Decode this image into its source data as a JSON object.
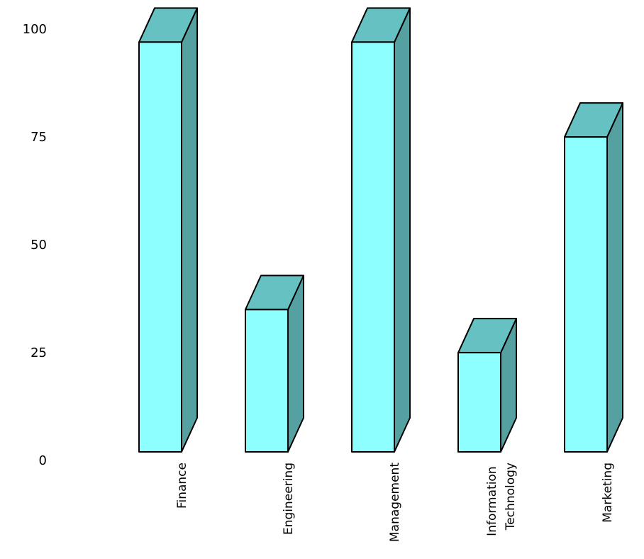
{
  "chart_data": {
    "type": "bar3d",
    "categories": [
      "Finance",
      "Engineering",
      "Management",
      "Information Technology",
      "Marketing"
    ],
    "values": [
      95,
      33,
      95,
      23,
      73
    ],
    "colors": {
      "front": "#8effff",
      "top": "#66c2c2",
      "side": "#55a0a0"
    },
    "ylim": [
      0,
      100
    ],
    "yticks": [
      0,
      25,
      50,
      75,
      100
    ],
    "grid": false
  }
}
